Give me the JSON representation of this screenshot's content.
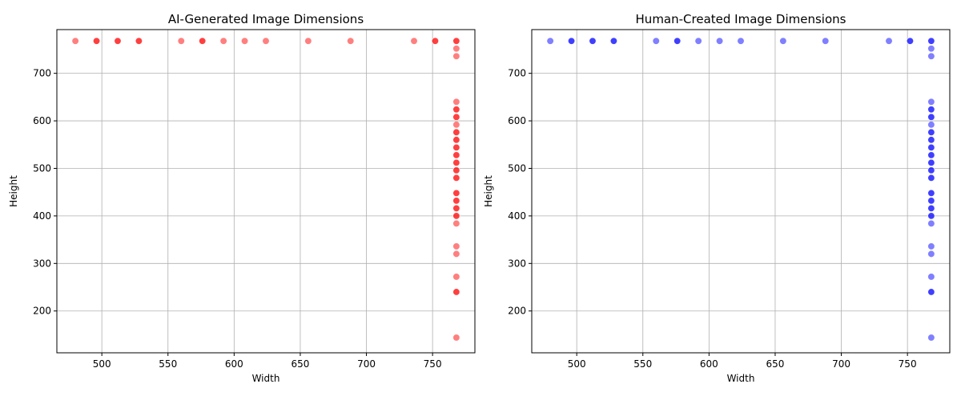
{
  "chart_data": [
    {
      "type": "scatter",
      "title": "AI-Generated Image Dimensions",
      "xlabel": "Width",
      "ylabel": "Height",
      "xlim": [
        466,
        782
      ],
      "ylim": [
        112,
        792
      ],
      "xticks": [
        500,
        550,
        600,
        650,
        700,
        750
      ],
      "yticks": [
        200,
        300,
        400,
        500,
        600,
        700
      ],
      "grid": true,
      "color": "#ff0000",
      "points": [
        {
          "x": 480,
          "y": 768
        },
        {
          "x": 496,
          "y": 768
        },
        {
          "x": 496,
          "y": 768
        },
        {
          "x": 512,
          "y": 768
        },
        {
          "x": 512,
          "y": 768
        },
        {
          "x": 528,
          "y": 768
        },
        {
          "x": 528,
          "y": 768
        },
        {
          "x": 560,
          "y": 768
        },
        {
          "x": 576,
          "y": 768
        },
        {
          "x": 576,
          "y": 768
        },
        {
          "x": 592,
          "y": 768
        },
        {
          "x": 608,
          "y": 768
        },
        {
          "x": 624,
          "y": 768
        },
        {
          "x": 656,
          "y": 768
        },
        {
          "x": 688,
          "y": 768
        },
        {
          "x": 736,
          "y": 768
        },
        {
          "x": 752,
          "y": 768
        },
        {
          "x": 752,
          "y": 768
        },
        {
          "x": 768,
          "y": 768
        },
        {
          "x": 768,
          "y": 768
        },
        {
          "x": 768,
          "y": 752
        },
        {
          "x": 768,
          "y": 736
        },
        {
          "x": 768,
          "y": 640
        },
        {
          "x": 768,
          "y": 624
        },
        {
          "x": 768,
          "y": 624
        },
        {
          "x": 768,
          "y": 608
        },
        {
          "x": 768,
          "y": 608
        },
        {
          "x": 768,
          "y": 592
        },
        {
          "x": 768,
          "y": 576
        },
        {
          "x": 768,
          "y": 576
        },
        {
          "x": 768,
          "y": 560
        },
        {
          "x": 768,
          "y": 560
        },
        {
          "x": 768,
          "y": 544
        },
        {
          "x": 768,
          "y": 544
        },
        {
          "x": 768,
          "y": 528
        },
        {
          "x": 768,
          "y": 528
        },
        {
          "x": 768,
          "y": 512
        },
        {
          "x": 768,
          "y": 512
        },
        {
          "x": 768,
          "y": 496
        },
        {
          "x": 768,
          "y": 496
        },
        {
          "x": 768,
          "y": 480
        },
        {
          "x": 768,
          "y": 480
        },
        {
          "x": 768,
          "y": 448
        },
        {
          "x": 768,
          "y": 448
        },
        {
          "x": 768,
          "y": 432
        },
        {
          "x": 768,
          "y": 432
        },
        {
          "x": 768,
          "y": 416
        },
        {
          "x": 768,
          "y": 416
        },
        {
          "x": 768,
          "y": 400
        },
        {
          "x": 768,
          "y": 400
        },
        {
          "x": 768,
          "y": 384
        },
        {
          "x": 768,
          "y": 336
        },
        {
          "x": 768,
          "y": 320
        },
        {
          "x": 768,
          "y": 272
        },
        {
          "x": 768,
          "y": 240
        },
        {
          "x": 768,
          "y": 240
        },
        {
          "x": 768,
          "y": 144
        }
      ]
    },
    {
      "type": "scatter",
      "title": "Human-Created Image Dimensions",
      "xlabel": "Width",
      "ylabel": "Height",
      "xlim": [
        466,
        782
      ],
      "ylim": [
        112,
        792
      ],
      "xticks": [
        500,
        550,
        600,
        650,
        700,
        750
      ],
      "yticks": [
        200,
        300,
        400,
        500,
        600,
        700
      ],
      "grid": true,
      "color": "#0000ff",
      "points": [
        {
          "x": 480,
          "y": 768
        },
        {
          "x": 496,
          "y": 768
        },
        {
          "x": 496,
          "y": 768
        },
        {
          "x": 512,
          "y": 768
        },
        {
          "x": 512,
          "y": 768
        },
        {
          "x": 528,
          "y": 768
        },
        {
          "x": 528,
          "y": 768
        },
        {
          "x": 560,
          "y": 768
        },
        {
          "x": 576,
          "y": 768
        },
        {
          "x": 576,
          "y": 768
        },
        {
          "x": 592,
          "y": 768
        },
        {
          "x": 608,
          "y": 768
        },
        {
          "x": 624,
          "y": 768
        },
        {
          "x": 656,
          "y": 768
        },
        {
          "x": 688,
          "y": 768
        },
        {
          "x": 736,
          "y": 768
        },
        {
          "x": 752,
          "y": 768
        },
        {
          "x": 752,
          "y": 768
        },
        {
          "x": 768,
          "y": 768
        },
        {
          "x": 768,
          "y": 768
        },
        {
          "x": 768,
          "y": 752
        },
        {
          "x": 768,
          "y": 736
        },
        {
          "x": 768,
          "y": 640
        },
        {
          "x": 768,
          "y": 624
        },
        {
          "x": 768,
          "y": 624
        },
        {
          "x": 768,
          "y": 608
        },
        {
          "x": 768,
          "y": 608
        },
        {
          "x": 768,
          "y": 592
        },
        {
          "x": 768,
          "y": 576
        },
        {
          "x": 768,
          "y": 576
        },
        {
          "x": 768,
          "y": 560
        },
        {
          "x": 768,
          "y": 560
        },
        {
          "x": 768,
          "y": 544
        },
        {
          "x": 768,
          "y": 544
        },
        {
          "x": 768,
          "y": 528
        },
        {
          "x": 768,
          "y": 528
        },
        {
          "x": 768,
          "y": 512
        },
        {
          "x": 768,
          "y": 512
        },
        {
          "x": 768,
          "y": 496
        },
        {
          "x": 768,
          "y": 496
        },
        {
          "x": 768,
          "y": 480
        },
        {
          "x": 768,
          "y": 480
        },
        {
          "x": 768,
          "y": 448
        },
        {
          "x": 768,
          "y": 448
        },
        {
          "x": 768,
          "y": 432
        },
        {
          "x": 768,
          "y": 432
        },
        {
          "x": 768,
          "y": 416
        },
        {
          "x": 768,
          "y": 416
        },
        {
          "x": 768,
          "y": 400
        },
        {
          "x": 768,
          "y": 400
        },
        {
          "x": 768,
          "y": 384
        },
        {
          "x": 768,
          "y": 336
        },
        {
          "x": 768,
          "y": 320
        },
        {
          "x": 768,
          "y": 272
        },
        {
          "x": 768,
          "y": 240
        },
        {
          "x": 768,
          "y": 240
        },
        {
          "x": 768,
          "y": 144
        }
      ]
    }
  ]
}
